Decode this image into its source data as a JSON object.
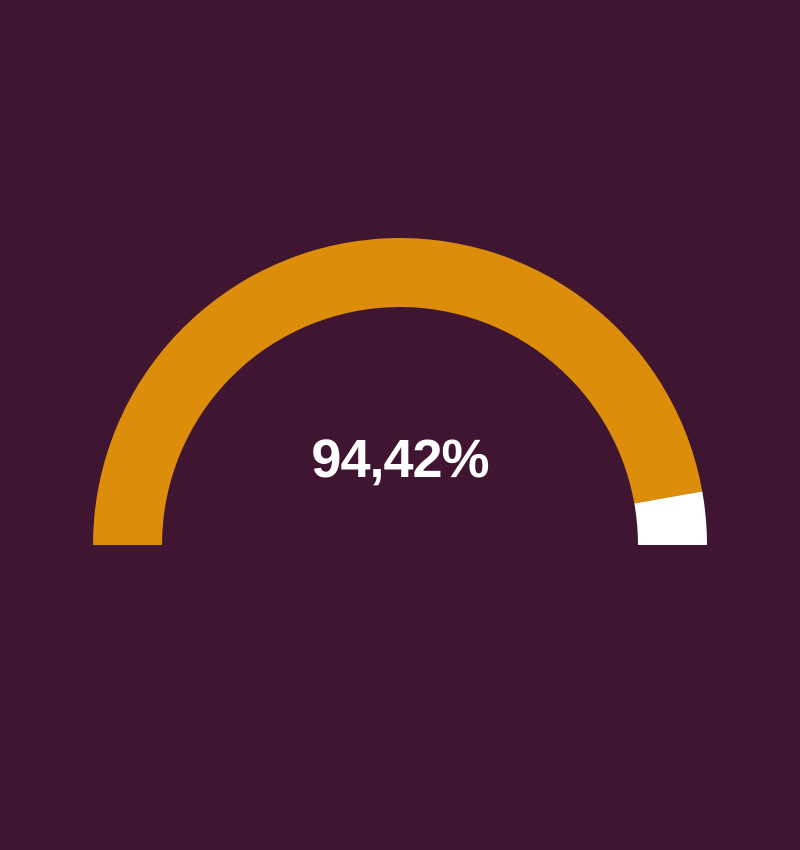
{
  "page": {
    "background_color": "#401531"
  },
  "chart_data": {
    "type": "pie",
    "variant": "half-donut-gauge",
    "label": "94,42%",
    "value_pct": 94.42,
    "remainder_pct": 5.58,
    "start_angle_deg": 180,
    "end_angle_deg": 0,
    "label_color": "#FFFFFF",
    "series": [
      {
        "name": "value",
        "value": 94.42,
        "color": "#DC8E0A"
      },
      {
        "name": "remainder",
        "value": 5.58,
        "color": "#FFFFFF"
      }
    ]
  }
}
